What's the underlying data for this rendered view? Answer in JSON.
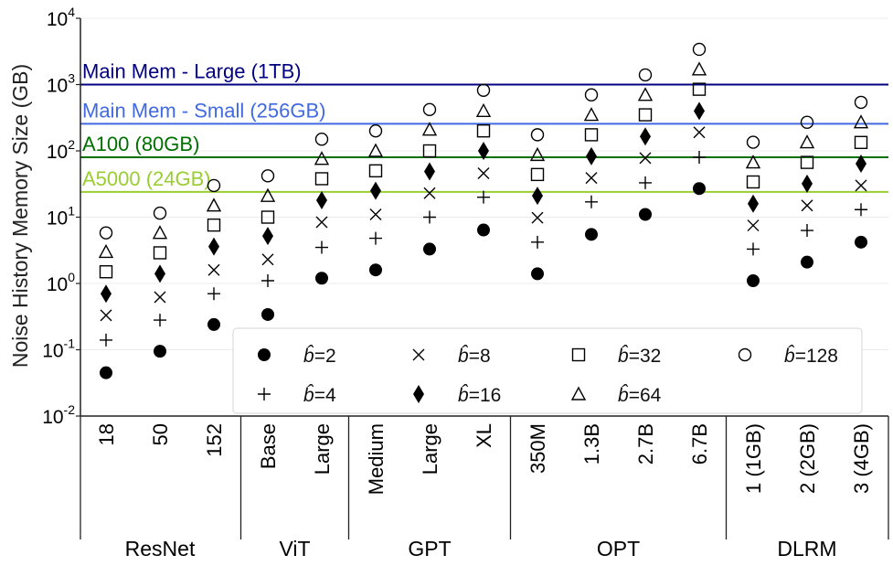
{
  "chart_data": {
    "type": "scatter",
    "ylabel": "Noise History Memory Size (GB)",
    "yscale": "log",
    "ylim": [
      0.01,
      10000
    ],
    "yticks": [
      {
        "base": "10",
        "exp": "-2"
      },
      {
        "base": "10",
        "exp": "-1"
      },
      {
        "base": "10",
        "exp": "0"
      },
      {
        "base": "10",
        "exp": "1"
      },
      {
        "base": "10",
        "exp": "2"
      },
      {
        "base": "10",
        "exp": "3"
      },
      {
        "base": "10",
        "exp": "4"
      }
    ],
    "categories": [
      "18",
      "50",
      "152",
      "Base",
      "Large",
      "Medium",
      "Large",
      "XL",
      "350M",
      "1.3B",
      "2.7B",
      "6.7B",
      "1 (1GB)",
      "2 (2GB)",
      "3 (4GB)"
    ],
    "groups": [
      {
        "name": "ResNet",
        "count": 3
      },
      {
        "name": "ViT",
        "count": 2
      },
      {
        "name": "GPT",
        "count": 3
      },
      {
        "name": "OPT",
        "count": 4
      },
      {
        "name": "DLRM",
        "count": 3
      }
    ],
    "reference_lines": [
      {
        "label": "Main Mem - Large (1TB)",
        "value": 1000,
        "color": "#000080"
      },
      {
        "label": "Main Mem - Small (256GB)",
        "value": 256,
        "color": "#4169e1"
      },
      {
        "label": "A100 (80GB)",
        "value": 80,
        "color": "#007000"
      },
      {
        "label": "A5000 (24GB)",
        "value": 24,
        "color": "#9acd32"
      }
    ],
    "series": [
      {
        "name": "2",
        "marker": "filled-circle",
        "values": [
          0.045,
          0.095,
          0.24,
          0.34,
          1.2,
          1.6,
          3.3,
          6.4,
          1.4,
          5.5,
          11,
          27,
          1.1,
          2.1,
          4.2
        ]
      },
      {
        "name": "4",
        "marker": "plus",
        "values": [
          0.14,
          0.28,
          0.7,
          1.1,
          3.5,
          4.8,
          10,
          20,
          4.2,
          17,
          33,
          80,
          3.3,
          6.3,
          13
        ]
      },
      {
        "name": "8",
        "marker": "x",
        "values": [
          0.33,
          0.62,
          1.6,
          2.3,
          8.4,
          11,
          23,
          46,
          9.8,
          39,
          78,
          190,
          7.5,
          15,
          30
        ]
      },
      {
        "name": "16",
        "marker": "diamond",
        "values": [
          0.7,
          1.4,
          3.6,
          5.2,
          18,
          25,
          49,
          100,
          21,
          83,
          165,
          400,
          16,
          32,
          64
        ]
      },
      {
        "name": "32",
        "marker": "square",
        "values": [
          1.5,
          2.9,
          7.6,
          10,
          38,
          50,
          100,
          200,
          44,
          175,
          350,
          850,
          34,
          67,
          134
        ]
      },
      {
        "name": "64",
        "marker": "triangle",
        "values": [
          3,
          5.8,
          15,
          21,
          76,
          100,
          210,
          400,
          87,
          350,
          700,
          1700,
          67,
          135,
          270
        ]
      },
      {
        "name": "128",
        "marker": "open-circle",
        "values": [
          5.8,
          11.5,
          30,
          42,
          150,
          200,
          420,
          820,
          175,
          700,
          1400,
          3400,
          135,
          270,
          540
        ]
      }
    ],
    "legend": {
      "position": "lower-right",
      "items": [
        {
          "marker": "filled-circle",
          "label": "=2"
        },
        {
          "marker": "x",
          "label": "=8"
        },
        {
          "marker": "square",
          "label": "=32"
        },
        {
          "marker": "open-circle",
          "label": "=128"
        },
        {
          "marker": "plus",
          "label": "=4"
        },
        {
          "marker": "diamond",
          "label": "=16"
        },
        {
          "marker": "triangle",
          "label": "=64"
        }
      ],
      "symbol": "b̂"
    }
  }
}
